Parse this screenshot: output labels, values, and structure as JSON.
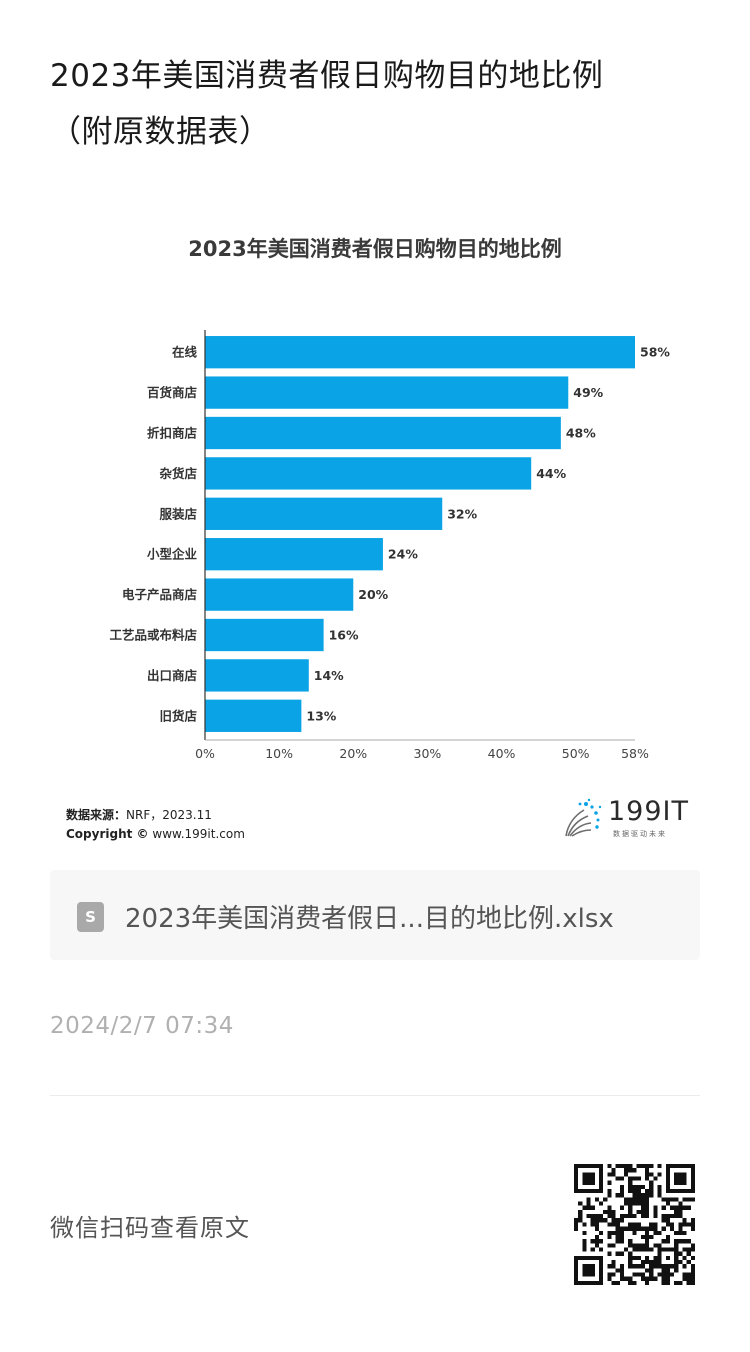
{
  "page": {
    "title_line1": "2023年美国消费者假日购物目的地比例",
    "title_line2": "（附原数据表）"
  },
  "chart_data": {
    "type": "bar",
    "orientation": "horizontal",
    "title": "2023年美国消费者假日购物目的地比例",
    "categories": [
      "在线",
      "百货商店",
      "折扣商店",
      "杂货店",
      "服装店",
      "小型企业",
      "电子产品商店",
      "工艺品或布料店",
      "出口商店",
      "旧货店"
    ],
    "values": [
      58,
      49,
      48,
      44,
      32,
      24,
      20,
      16,
      14,
      13
    ],
    "value_labels": [
      "58%",
      "49%",
      "48%",
      "44%",
      "32%",
      "24%",
      "20%",
      "16%",
      "14%",
      "13%"
    ],
    "xlim": [
      0,
      58
    ],
    "x_ticks": [
      0,
      10,
      20,
      30,
      40,
      50,
      58
    ],
    "x_tick_labels": [
      "0%",
      "10%",
      "20%",
      "30%",
      "40%",
      "50%",
      "58%"
    ],
    "grid": false,
    "bar_color": "#0aa3e6"
  },
  "source": {
    "label": "数据来源：",
    "value": "NRF，2023.11",
    "copyright_label": "Copyright ©",
    "copyright_value": "www.199it.com"
  },
  "brand": {
    "name": "199IT",
    "tagline": "数据驱动未来"
  },
  "attachment": {
    "icon": "spreadsheet-file-icon",
    "icon_letter": "S",
    "filename": "2023年美国消费者假日...目的地比例.xlsx"
  },
  "timestamp": "2024/2/7 07:34",
  "footer": {
    "scan_text": "微信扫码查看原文",
    "qr_icon": "qr-code-icon"
  }
}
